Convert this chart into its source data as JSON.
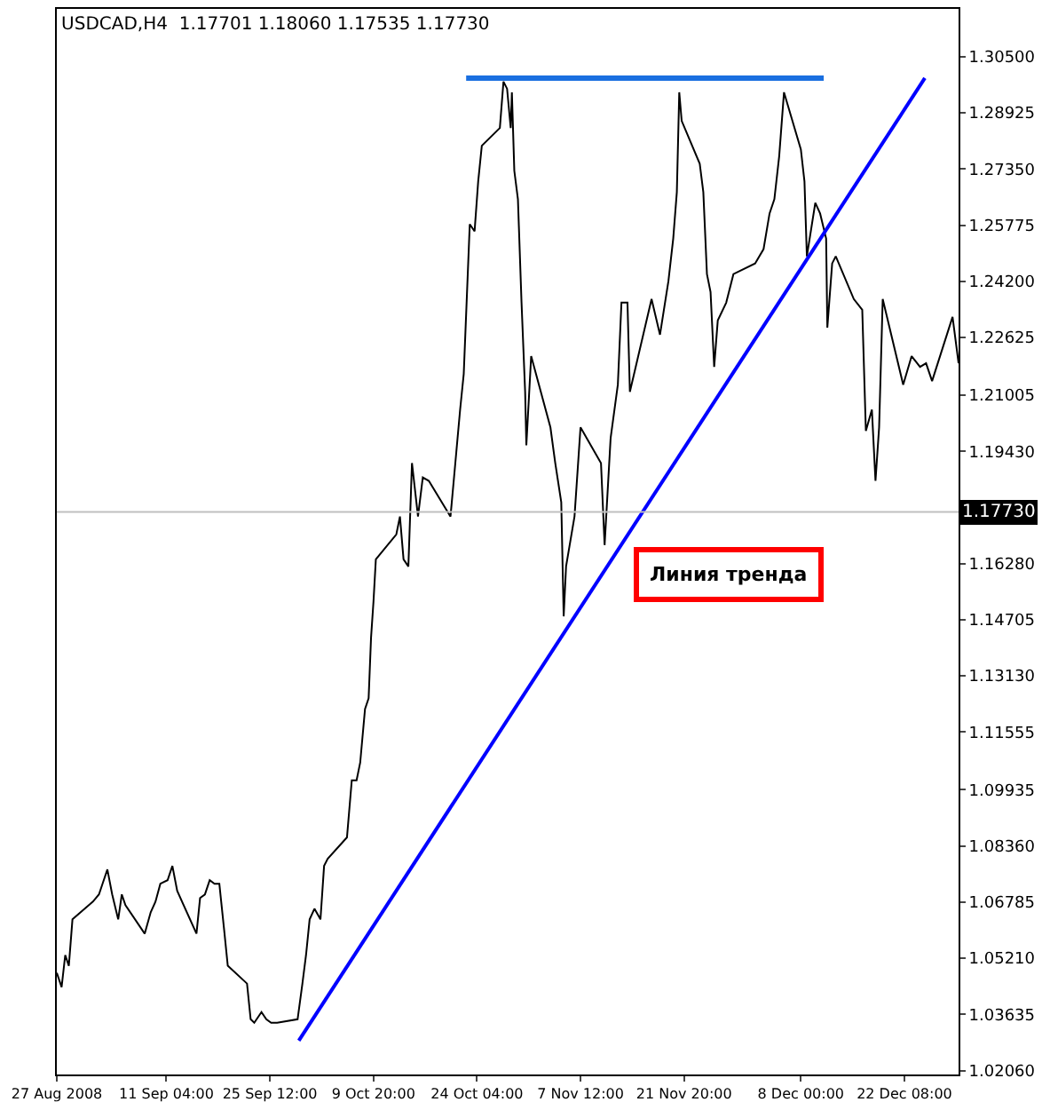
{
  "chart_data": {
    "type": "line",
    "title": "USDCAD,H4  1.17701 1.18060 1.17535 1.17730",
    "annotations": [
      "Линия тренда"
    ],
    "xlim": [
      "2008-08-27T00:00",
      "2008-12-29T20:00"
    ],
    "xticks": [
      {
        "value": "2008-08-27T00:00",
        "label": "27 Aug 2008"
      },
      {
        "value": "2008-09-11T04:00",
        "label": "11 Sep 04:00"
      },
      {
        "value": "2008-09-25T12:00",
        "label": "25 Sep 12:00"
      },
      {
        "value": "2008-10-09T20:00",
        "label": "9 Oct 20:00"
      },
      {
        "value": "2008-10-24T04:00",
        "label": "24 Oct 04:00"
      },
      {
        "value": "2008-11-07T12:00",
        "label": "7 Nov 12:00"
      },
      {
        "value": "2008-11-21T20:00",
        "label": "21 Nov 20:00"
      },
      {
        "value": "2008-12-08T00:00",
        "label": "8 Dec 00:00"
      },
      {
        "value": "2008-12-22T08:00",
        "label": "22 Dec 08:00"
      }
    ],
    "ylim": [
      1.0195,
      1.3184
    ],
    "yticks": [
      {
        "value": 1.305,
        "label": "1.30500"
      },
      {
        "value": 1.28925,
        "label": "1.28925"
      },
      {
        "value": 1.2735,
        "label": "1.27350"
      },
      {
        "value": 1.25775,
        "label": "1.25775"
      },
      {
        "value": 1.242,
        "label": "1.24200"
      },
      {
        "value": 1.22625,
        "label": "1.22625"
      },
      {
        "value": 1.21005,
        "label": "1.21005"
      },
      {
        "value": 1.1943,
        "label": "1.19430"
      },
      {
        "value": 1.1628,
        "label": "1.16280"
      },
      {
        "value": 1.14705,
        "label": "1.14705"
      },
      {
        "value": 1.1313,
        "label": "1.13130"
      },
      {
        "value": 1.11555,
        "label": "1.11555"
      },
      {
        "value": 1.09935,
        "label": "1.09935"
      },
      {
        "value": 1.0836,
        "label": "1.08360"
      },
      {
        "value": 1.06785,
        "label": "1.06785"
      },
      {
        "value": 1.0521,
        "label": "1.05210"
      },
      {
        "value": 1.03635,
        "label": "1.03635"
      },
      {
        "value": 1.0206,
        "label": "1.02060"
      }
    ],
    "ref_lines": [
      {
        "axis": "y",
        "value": 1.1773,
        "label": "1.17730",
        "color": "#c0c0c0"
      }
    ],
    "series": [
      {
        "color": "#000000",
        "x": [
          "2008-08-27T00:00",
          "2008-08-27T16:00",
          "2008-08-28T04:00",
          "2008-08-28T16:00",
          "2008-08-29T04:00",
          "2008-09-01T00:00",
          "2008-09-01T20:00",
          "2008-09-02T08:00",
          "2008-09-03T00:00",
          "2008-09-03T16:00",
          "2008-09-04T12:00",
          "2008-09-05T00:00",
          "2008-09-05T12:00",
          "2008-09-08T04:00",
          "2008-09-09T00:00",
          "2008-09-09T16:00",
          "2008-09-10T08:00",
          "2008-09-11T08:00",
          "2008-09-12T00:00",
          "2008-09-12T16:00",
          "2008-09-15T08:00",
          "2008-09-15T20:00",
          "2008-09-16T12:00",
          "2008-09-17T04:00",
          "2008-09-17T20:00",
          "2008-09-18T12:00",
          "2008-09-19T04:00",
          "2008-09-19T16:00",
          "2008-09-22T08:00",
          "2008-09-22T20:00",
          "2008-09-23T08:00",
          "2008-09-24T08:00",
          "2008-09-25T00:00",
          "2008-09-25T16:00",
          "2008-09-26T12:00",
          "2008-09-29T08:00",
          "2008-09-30T00:00",
          "2008-09-30T12:00",
          "2008-10-01T00:00",
          "2008-10-01T16:00",
          "2008-10-02T12:00",
          "2008-10-03T00:00",
          "2008-10-03T12:00",
          "2008-10-06T04:00",
          "2008-10-06T20:00",
          "2008-10-07T12:00",
          "2008-10-08T00:00",
          "2008-10-08T16:00",
          "2008-10-09T04:00",
          "2008-10-09T12:00",
          "2008-10-09T20:00",
          "2008-10-10T04:00",
          "2008-10-13T00:00",
          "2008-10-13T12:00",
          "2008-10-14T00:00",
          "2008-10-14T16:00",
          "2008-10-15T04:00",
          "2008-10-16T00:00",
          "2008-10-16T16:00",
          "2008-10-17T12:00",
          "2008-10-20T12:00",
          "2008-10-21T04:00",
          "2008-10-21T20:00",
          "2008-10-22T08:00",
          "2008-10-23T04:00",
          "2008-10-23T20:00",
          "2008-10-24T08:00",
          "2008-10-24T20:00",
          "2008-10-27T08:00",
          "2008-10-27T20:00",
          "2008-10-28T08:00",
          "2008-10-28T20:00",
          "2008-10-29T00:00",
          "2008-10-29T08:00",
          "2008-10-29T20:00",
          "2008-10-30T08:00",
          "2008-10-30T20:00",
          "2008-10-31T00:00",
          "2008-10-31T16:00",
          "2008-11-03T08:00",
          "2008-11-04T00:00",
          "2008-11-04T20:00",
          "2008-11-05T04:00",
          "2008-11-05T12:00",
          "2008-11-06T16:00",
          "2008-11-07T12:00",
          "2008-11-10T08:00",
          "2008-11-10T20:00",
          "2008-11-11T16:00",
          "2008-11-12T16:00",
          "2008-11-13T04:00",
          "2008-11-14T00:00",
          "2008-11-14T08:00",
          "2008-11-17T08:00",
          "2008-11-18T12:00",
          "2008-11-19T16:00",
          "2008-11-20T08:00",
          "2008-11-20T20:00",
          "2008-11-21T04:00",
          "2008-11-21T12:00",
          "2008-11-24T00:00",
          "2008-11-24T12:00",
          "2008-11-25T00:00",
          "2008-11-25T12:00",
          "2008-11-26T00:00",
          "2008-11-26T12:00",
          "2008-11-27T16:00",
          "2008-11-28T16:00",
          "2008-12-01T16:00",
          "2008-12-02T20:00",
          "2008-12-03T16:00",
          "2008-12-04T08:00",
          "2008-12-05T00:00",
          "2008-12-05T16:00",
          "2008-12-08T00:00",
          "2008-12-08T12:00",
          "2008-12-08T20:00",
          "2008-12-10T00:00",
          "2008-12-10T16:00",
          "2008-12-11T12:00",
          "2008-12-11T16:00",
          "2008-12-12T08:00",
          "2008-12-12T20:00",
          "2008-12-15T08:00",
          "2008-12-16T12:00",
          "2008-12-17T00:00",
          "2008-12-17T20:00",
          "2008-12-18T08:00",
          "2008-12-18T20:00",
          "2008-12-19T08:00",
          "2008-12-22T04:00",
          "2008-12-23T08:00",
          "2008-12-24T12:00",
          "2008-12-25T08:00",
          "2008-12-26T04:00",
          "2008-12-29T00:00",
          "2008-12-29T20:00"
        ],
        "values": [
          1.048,
          1.044,
          1.053,
          1.05,
          1.063,
          1.068,
          1.07,
          1.073,
          1.077,
          1.07,
          1.063,
          1.07,
          1.067,
          1.059,
          1.065,
          1.068,
          1.073,
          1.074,
          1.078,
          1.071,
          1.059,
          1.069,
          1.07,
          1.074,
          1.073,
          1.073,
          1.06,
          1.05,
          1.045,
          1.035,
          1.034,
          1.037,
          1.035,
          1.034,
          1.034,
          1.035,
          1.045,
          1.053,
          1.063,
          1.066,
          1.063,
          1.078,
          1.08,
          1.086,
          1.102,
          1.102,
          1.107,
          1.122,
          1.125,
          1.142,
          1.152,
          1.164,
          1.171,
          1.176,
          1.164,
          1.162,
          1.191,
          1.176,
          1.187,
          1.186,
          1.176,
          1.191,
          1.206,
          1.216,
          1.258,
          1.256,
          1.27,
          1.28,
          1.285,
          1.298,
          1.296,
          1.285,
          1.295,
          1.273,
          1.265,
          1.236,
          1.211,
          1.196,
          1.221,
          1.201,
          1.191,
          1.18,
          1.148,
          1.162,
          1.176,
          1.201,
          1.191,
          1.168,
          1.198,
          1.213,
          1.236,
          1.236,
          1.211,
          1.237,
          1.227,
          1.242,
          1.254,
          1.267,
          1.295,
          1.287,
          1.275,
          1.267,
          1.244,
          1.239,
          1.218,
          1.231,
          1.236,
          1.244,
          1.247,
          1.251,
          1.261,
          1.265,
          1.277,
          1.295,
          1.279,
          1.27,
          1.249,
          1.264,
          1.261,
          1.254,
          1.229,
          1.247,
          1.249,
          1.237,
          1.234,
          1.2,
          1.206,
          1.186,
          1.201,
          1.237,
          1.213,
          1.221,
          1.218,
          1.219,
          1.214,
          1.232,
          1.219
        ]
      },
      {
        "color": "#1a6fe0",
        "x": [
          "2008-10-22T16:00",
          "2008-12-11T04:00"
        ],
        "values": [
          1.299,
          1.299
        ]
      },
      {
        "color": "#0000ff",
        "x": [
          "2008-09-29T12:00",
          "2008-12-25T04:00"
        ],
        "values": [
          1.029,
          1.299
        ]
      }
    ]
  }
}
